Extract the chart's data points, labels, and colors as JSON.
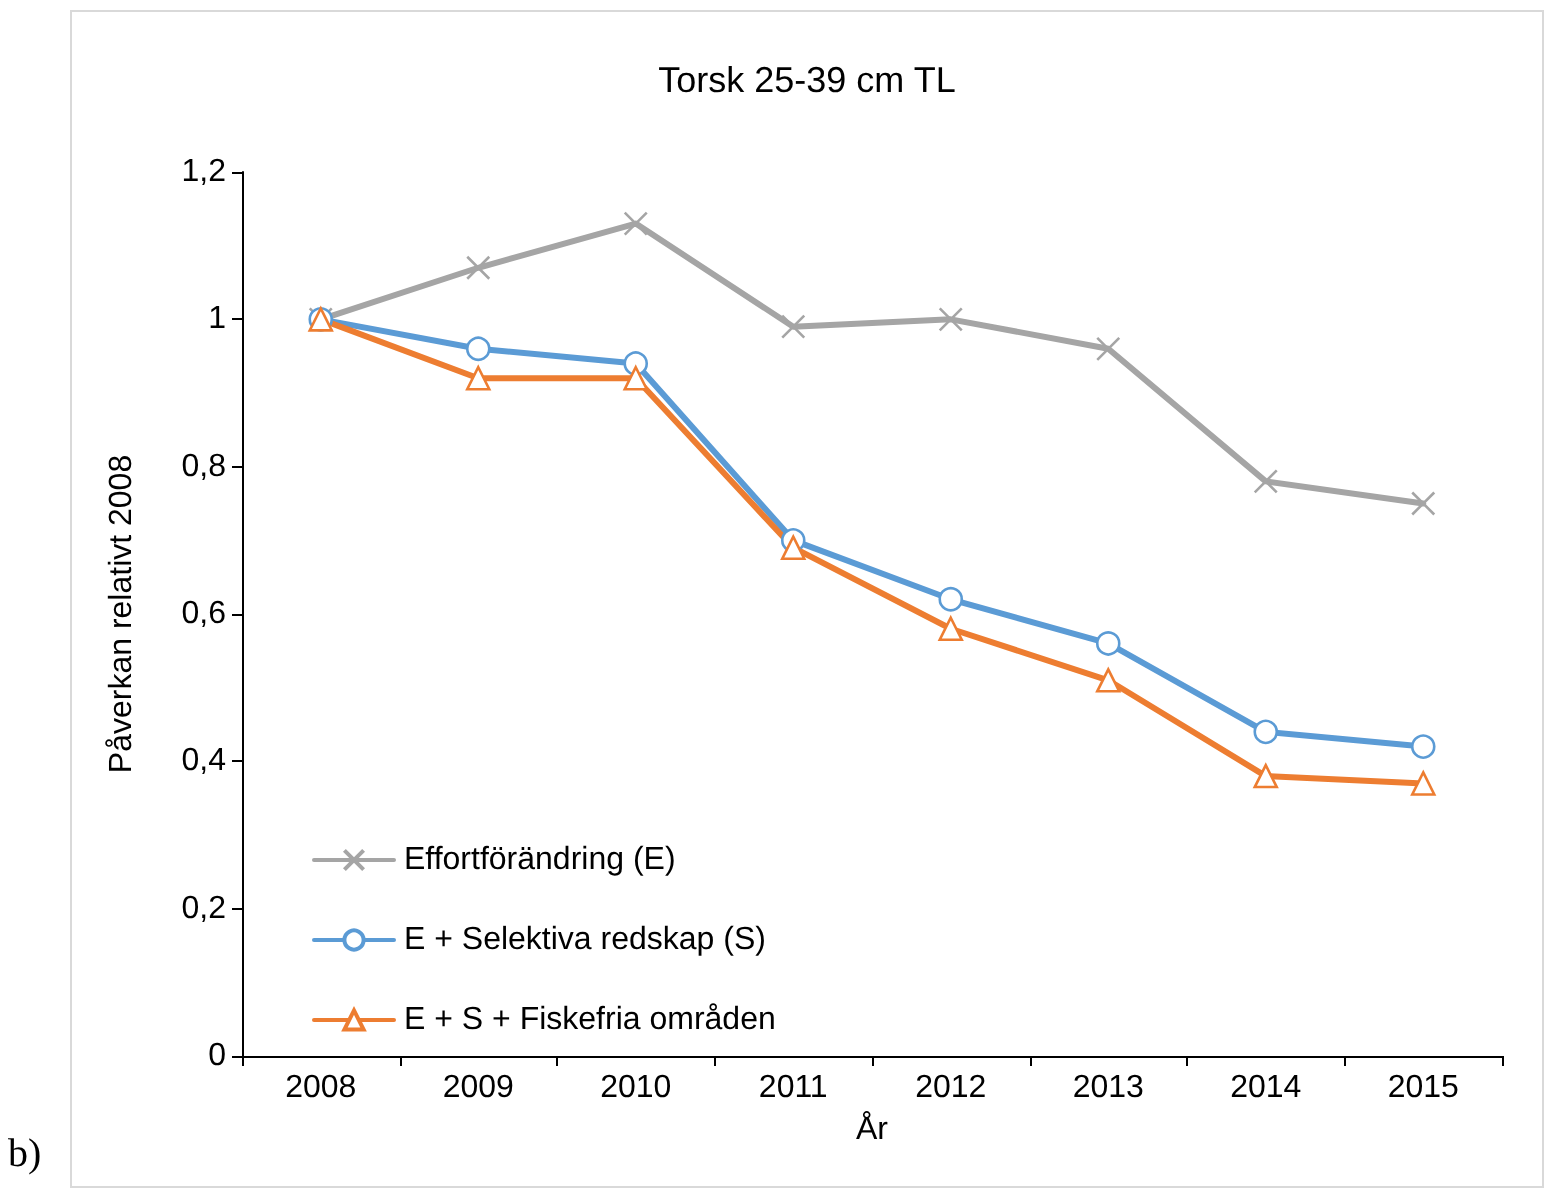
{
  "chart_data": {
    "type": "line",
    "title": "Torsk 25-39 cm TL",
    "xlabel": "År",
    "ylabel": "Påverkan relativt 2008",
    "categories": [
      "2008",
      "2009",
      "2010",
      "2011",
      "2012",
      "2013",
      "2014",
      "2015"
    ],
    "series": [
      {
        "name": "Effortförändring (E)",
        "color": "#a5a5a5",
        "marker": "cross",
        "values": [
          1,
          1.07,
          1.13,
          0.99,
          1.0,
          0.96,
          0.78,
          0.75
        ]
      },
      {
        "name": "E + Selektiva redskap (S)",
        "color": "#5b9bd5",
        "marker": "circle",
        "values": [
          1,
          0.96,
          0.94,
          0.7,
          0.62,
          0.56,
          0.44,
          0.42
        ]
      },
      {
        "name": "E + S + Fiskefria områden",
        "color": "#ed7d31",
        "marker": "triangle",
        "values": [
          1,
          0.92,
          0.92,
          0.69,
          0.58,
          0.51,
          0.38,
          0.37
        ]
      }
    ],
    "ylim": [
      0,
      1.2
    ],
    "yticks": [
      0,
      {
        "value": 0.2,
        "label": "0,2"
      },
      {
        "value": 0.4,
        "label": "0,4"
      },
      {
        "value": 0.6,
        "label": "0,6"
      },
      {
        "value": 0.8,
        "label": "0,8"
      },
      1,
      {
        "value": 1.2,
        "label": "1,2"
      }
    ],
    "grid": false,
    "legend": "bottom left",
    "line_style": "solid",
    "annotations": [
      "b)"
    ]
  }
}
